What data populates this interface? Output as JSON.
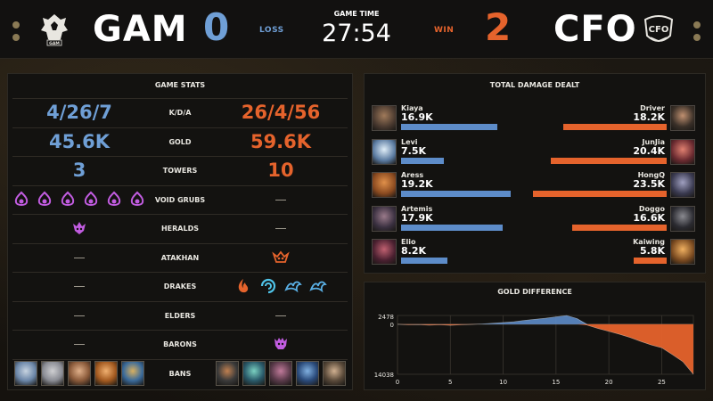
{
  "header": {
    "left_team": "GAM",
    "left_score": "0",
    "left_result": "LOSS",
    "right_team": "CFO",
    "right_score": "2",
    "right_result": "WIN",
    "game_time_label": "GAME TIME",
    "game_time": "27:54",
    "left_logo_text": "GAM",
    "right_logo_text": "CFO"
  },
  "colors": {
    "blue": "#6f9fd6",
    "orange": "#e5632c",
    "purple": "#c15ce0"
  },
  "stats": {
    "title": "GAME STATS",
    "rows": [
      {
        "label": "K/D/A",
        "left": "4/26/7",
        "right": "26/4/56"
      },
      {
        "label": "GOLD",
        "left": "45.6K",
        "right": "59.6K"
      },
      {
        "label": "TOWERS",
        "left": "3",
        "right": "10"
      },
      {
        "label": "VOID GRUBS",
        "left_icons": [
          "void-grub-icon",
          "void-grub-icon",
          "void-grub-icon",
          "void-grub-icon",
          "void-grub-icon",
          "void-grub-icon"
        ],
        "right_icons": []
      },
      {
        "label": "HERALDS",
        "left_icons": [
          "herald-icon"
        ],
        "right_icons": []
      },
      {
        "label": "ATAKHAN",
        "left_icons": [],
        "right_icons": [
          "atakhan-icon"
        ]
      },
      {
        "label": "DRAKES",
        "left_icons": [],
        "right_icons": [
          "infernal-drake-icon",
          "cloud-drake-icon",
          "ocean-drake-icon",
          "ocean-drake-icon"
        ]
      },
      {
        "label": "ELDERS",
        "left_icons": [],
        "right_icons": []
      },
      {
        "label": "BARONS",
        "left_icons": [],
        "right_icons": [
          "baron-icon"
        ]
      },
      {
        "label": "BANS",
        "left_icons": [
          "ban-champion",
          "ban-champion",
          "ban-champion",
          "ban-champion",
          "ban-champion"
        ],
        "right_icons": [
          "ban-champion",
          "ban-champion",
          "ban-champion",
          "ban-champion",
          "ban-champion"
        ]
      }
    ]
  },
  "damage": {
    "title": "TOTAL DAMAGE DEALT",
    "max_value": 23500,
    "left": [
      {
        "name": "Kiaya",
        "damage": "16.9K",
        "value": 16900
      },
      {
        "name": "Levi",
        "damage": "7.5K",
        "value": 7500
      },
      {
        "name": "Aress",
        "damage": "19.2K",
        "value": 19200
      },
      {
        "name": "Artemis",
        "damage": "17.9K",
        "value": 17900
      },
      {
        "name": "Elio",
        "damage": "8.2K",
        "value": 8200
      }
    ],
    "right": [
      {
        "name": "Driver",
        "damage": "18.2K",
        "value": 18200
      },
      {
        "name": "JunJia",
        "damage": "20.4K",
        "value": 20400
      },
      {
        "name": "HongQ",
        "damage": "23.5K",
        "value": 23500
      },
      {
        "name": "Doggo",
        "damage": "16.6K",
        "value": 16600
      },
      {
        "name": "Kaiwing",
        "damage": "5.8K",
        "value": 5800
      }
    ]
  },
  "gold_diff": {
    "title": "GOLD DIFFERENCE",
    "y_top_label": "2478",
    "y_zero_label": "0",
    "y_bottom_label": "14038",
    "ymax": 2478,
    "ymin": -14038,
    "xmax": 28,
    "x_ticks": [
      "0",
      "5",
      "10",
      "15",
      "20",
      "25"
    ],
    "x_tick_values": [
      0,
      5,
      10,
      15,
      20,
      25
    ],
    "series": [
      [
        0,
        0
      ],
      [
        1,
        -150
      ],
      [
        2,
        -100
      ],
      [
        3,
        -250
      ],
      [
        4,
        -150
      ],
      [
        5,
        -300
      ],
      [
        6,
        -150
      ],
      [
        7,
        -50
      ],
      [
        8,
        100
      ],
      [
        9,
        300
      ],
      [
        10,
        500
      ],
      [
        11,
        700
      ],
      [
        12,
        1100
      ],
      [
        13,
        1400
      ],
      [
        14,
        1700
      ],
      [
        15,
        2100
      ],
      [
        16,
        2478
      ],
      [
        17,
        1600
      ],
      [
        18,
        -300
      ],
      [
        19,
        -1200
      ],
      [
        20,
        -2000
      ],
      [
        21,
        -2800
      ],
      [
        22,
        -3700
      ],
      [
        23,
        -4800
      ],
      [
        24,
        -5800
      ],
      [
        25,
        -6600
      ],
      [
        26,
        -8500
      ],
      [
        27,
        -10500
      ],
      [
        28,
        -14038
      ]
    ]
  }
}
